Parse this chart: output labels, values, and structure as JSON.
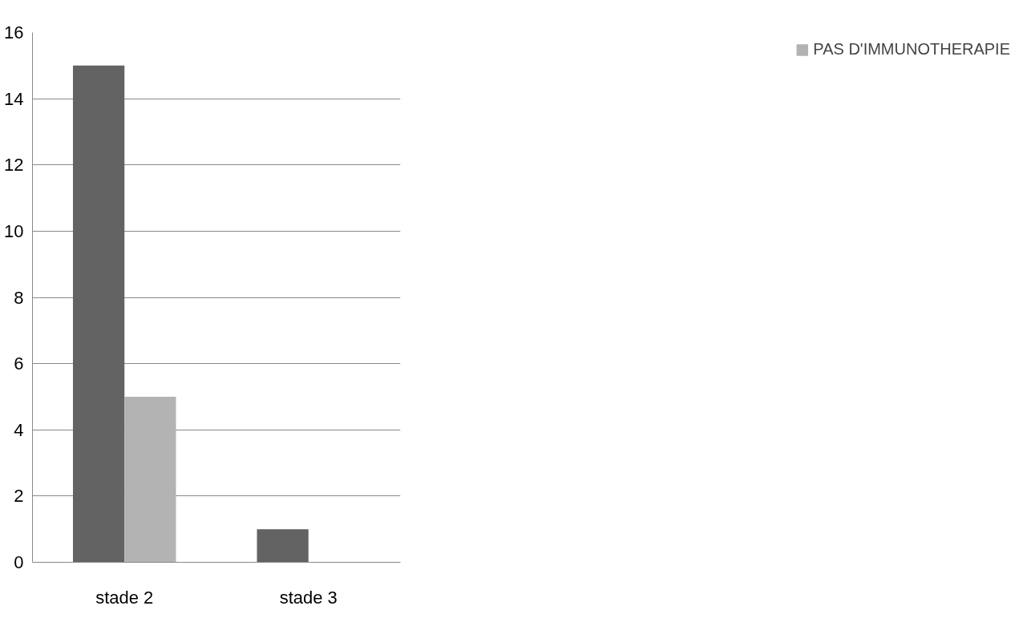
{
  "chart_data": {
    "type": "bar",
    "categories": [
      "stade 2",
      "stade 3"
    ],
    "series": [
      {
        "color": "#636363",
        "values": [
          15,
          1
        ]
      },
      {
        "name": "PAS D'IMMUNOTHERAPIE",
        "color": "#b3b3b3",
        "values": [
          5,
          0
        ]
      }
    ],
    "ylim": [
      0,
      16
    ],
    "yticks": [
      0,
      2,
      4,
      6,
      8,
      10,
      12,
      14,
      16
    ],
    "grid": "y",
    "legend": "right"
  }
}
